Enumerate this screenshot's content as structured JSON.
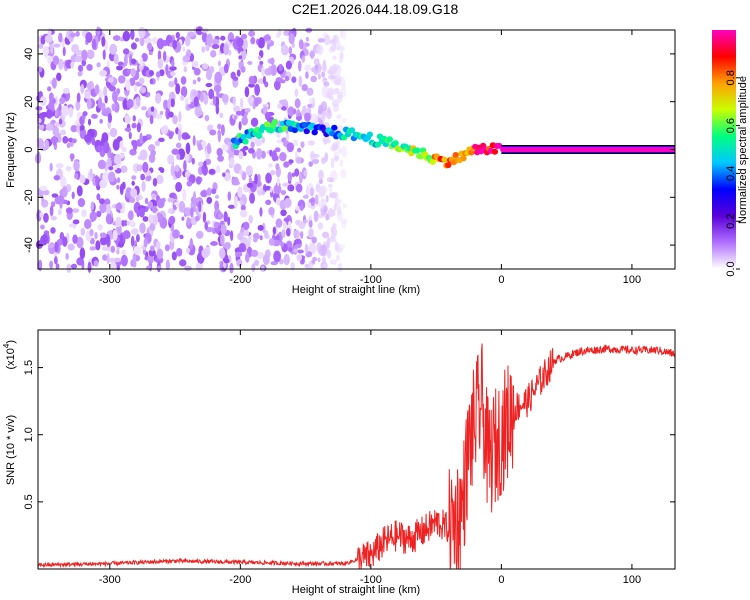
{
  "figure": {
    "title": "C2E1.2026.044.18.09.G18"
  },
  "colors": {
    "colorbar_stops": [
      "#ffffff",
      "#b070ff",
      "#5a00d8",
      "#0000ff",
      "#00c8ff",
      "#00ff80",
      "#c8ff00",
      "#ffa000",
      "#ff0000",
      "#ff00c0"
    ],
    "snr_line": "#ee2222",
    "background": "#ffffff"
  },
  "chart_data": [
    {
      "type": "heatmap",
      "title": "C2E1.2026.044.18.09.G18",
      "xlabel": "Height of straight line (km)",
      "ylabel": "Frequency (Hz)",
      "xlim": [
        -355,
        133
      ],
      "ylim": [
        -50,
        50
      ],
      "xticks": [
        -300,
        -200,
        -100,
        0,
        100
      ],
      "yticks": [
        -40,
        -20,
        0,
        20,
        40
      ],
      "colorbar": {
        "label": "Normalized spectral amplitude",
        "range": [
          0.0,
          1.0
        ],
        "ticks": [
          0.0,
          0.2,
          0.4,
          0.6,
          0.8
        ]
      },
      "description_data": {
        "noise_region_x": [
          -355,
          -120
        ],
        "noise_amplitude_range": [
          0.02,
          0.15
        ],
        "signal_track": [
          {
            "x": -205,
            "y": 3,
            "amp": 0.45
          },
          {
            "x": -175,
            "y": 10,
            "amp": 0.55
          },
          {
            "x": -140,
            "y": 8,
            "amp": 0.35
          },
          {
            "x": -110,
            "y": 6,
            "amp": 0.5
          },
          {
            "x": -90,
            "y": 3,
            "amp": 0.55
          },
          {
            "x": -75,
            "y": 1,
            "amp": 0.6
          },
          {
            "x": -60,
            "y": -2,
            "amp": 0.65
          },
          {
            "x": -45,
            "y": -5,
            "amp": 0.8
          },
          {
            "x": -35,
            "y": -4,
            "amp": 0.75
          },
          {
            "x": -20,
            "y": 0,
            "amp": 0.9
          },
          {
            "x": -5,
            "y": 0,
            "amp": 0.95
          },
          {
            "x": 0,
            "y": 0,
            "amp": 1.0
          },
          {
            "x": 133,
            "y": 0,
            "amp": 1.0
          }
        ]
      }
    },
    {
      "type": "line",
      "xlabel": "Height of straight line (km)",
      "ylabel": "SNR (10 * v/v)",
      "scale_note": "(x10",
      "scale_exp": "4",
      "scale_close": ")",
      "xlim": [
        -355,
        133
      ],
      "ylim": [
        0,
        1.78
      ],
      "xticks": [
        -300,
        -200,
        -100,
        0,
        100
      ],
      "yticks": [
        0.5,
        1.0,
        1.5
      ],
      "series": [
        {
          "x": [
            -355,
            -300,
            -250,
            -200,
            -150,
            -120,
            -100,
            -90,
            -80,
            -70,
            -60,
            -50,
            -40,
            -30,
            -25,
            -20,
            -15,
            -10,
            -5,
            0,
            10,
            20,
            30,
            40,
            60,
            80,
            100,
            120,
            133
          ],
          "y": [
            0.03,
            0.04,
            0.06,
            0.05,
            0.04,
            0.04,
            0.1,
            0.2,
            0.25,
            0.22,
            0.28,
            0.35,
            0.3,
            0.45,
            0.9,
            1.1,
            1.25,
            0.8,
            0.9,
            1.0,
            1.2,
            1.25,
            1.4,
            1.55,
            1.62,
            1.64,
            1.63,
            1.63,
            1.6
          ]
        }
      ]
    }
  ]
}
